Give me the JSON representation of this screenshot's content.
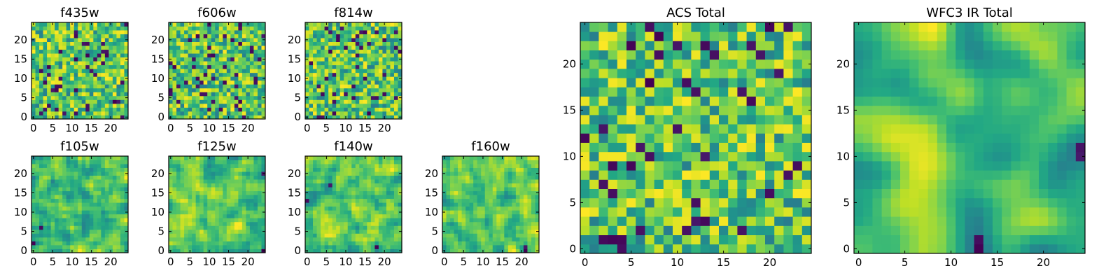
{
  "figure": {
    "description_colormap": "viridis"
  },
  "chart_data": [
    {
      "type": "heatmap",
      "title": "f435w",
      "grid_size": 25,
      "xticks": [
        "0",
        "5",
        "10",
        "15",
        "20"
      ],
      "yticks": [
        "0",
        "5",
        "10",
        "15",
        "20"
      ],
      "xlim": [
        -0.5,
        24.5
      ],
      "ylim": [
        -0.5,
        24.5
      ],
      "seed": 11,
      "smooth": 0,
      "colormap": "viridis"
    },
    {
      "type": "heatmap",
      "title": "f606w",
      "grid_size": 25,
      "xticks": [
        "0",
        "5",
        "10",
        "15",
        "20"
      ],
      "yticks": [
        "0",
        "5",
        "10",
        "15",
        "20"
      ],
      "xlim": [
        -0.5,
        24.5
      ],
      "ylim": [
        -0.5,
        24.5
      ],
      "seed": 23,
      "smooth": 0,
      "colormap": "viridis"
    },
    {
      "type": "heatmap",
      "title": "f814w",
      "grid_size": 25,
      "xticks": [
        "0",
        "5",
        "10",
        "15",
        "20"
      ],
      "yticks": [
        "0",
        "5",
        "10",
        "15",
        "20"
      ],
      "xlim": [
        -0.5,
        24.5
      ],
      "ylim": [
        -0.5,
        24.5
      ],
      "seed": 37,
      "smooth": 0,
      "colormap": "viridis"
    },
    {
      "type": "heatmap",
      "title": "f105w",
      "grid_size": 25,
      "xticks": [
        "0",
        "5",
        "10",
        "15",
        "20"
      ],
      "yticks": [
        "0",
        "5",
        "10",
        "15",
        "20"
      ],
      "xlim": [
        -0.5,
        24.5
      ],
      "ylim": [
        -0.5,
        24.5
      ],
      "seed": 41,
      "smooth": 1,
      "colormap": "viridis"
    },
    {
      "type": "heatmap",
      "title": "f125w",
      "grid_size": 25,
      "xticks": [
        "0",
        "5",
        "10",
        "15",
        "20"
      ],
      "yticks": [
        "0",
        "5",
        "10",
        "15",
        "20"
      ],
      "xlim": [
        -0.5,
        24.5
      ],
      "ylim": [
        -0.5,
        24.5
      ],
      "seed": 53,
      "smooth": 1,
      "colormap": "viridis"
    },
    {
      "type": "heatmap",
      "title": "f140w",
      "grid_size": 25,
      "xticks": [
        "0",
        "5",
        "10",
        "15",
        "20"
      ],
      "yticks": [
        "0",
        "5",
        "10",
        "15",
        "20"
      ],
      "xlim": [
        -0.5,
        24.5
      ],
      "ylim": [
        -0.5,
        24.5
      ],
      "seed": 67,
      "smooth": 1,
      "colormap": "viridis"
    },
    {
      "type": "heatmap",
      "title": "f160w",
      "grid_size": 25,
      "xticks": [
        "0",
        "5",
        "10",
        "15",
        "20"
      ],
      "yticks": [
        "0",
        "5",
        "10",
        "15",
        "20"
      ],
      "xlim": [
        -0.5,
        24.5
      ],
      "ylim": [
        -0.5,
        24.5
      ],
      "seed": 79,
      "smooth": 1,
      "colormap": "viridis"
    },
    {
      "type": "heatmap",
      "title": "ACS Total",
      "grid_size": 25,
      "xticks": [
        "0",
        "5",
        "10",
        "15",
        "20"
      ],
      "yticks": [
        "0",
        "5",
        "10",
        "15",
        "20"
      ],
      "xlim": [
        -0.5,
        24.5
      ],
      "ylim": [
        -0.5,
        24.5
      ],
      "seed": 97,
      "smooth": 0,
      "colormap": "viridis"
    },
    {
      "type": "heatmap",
      "title": "WFC3 IR Total",
      "grid_size": 25,
      "xticks": [
        "0",
        "5",
        "10",
        "15",
        "20"
      ],
      "yticks": [
        "0",
        "5",
        "10",
        "15",
        "20"
      ],
      "xlim": [
        -0.5,
        24.5
      ],
      "ylim": [
        -0.5,
        24.5
      ],
      "seed": 101,
      "smooth": 3,
      "colormap": "viridis"
    }
  ]
}
